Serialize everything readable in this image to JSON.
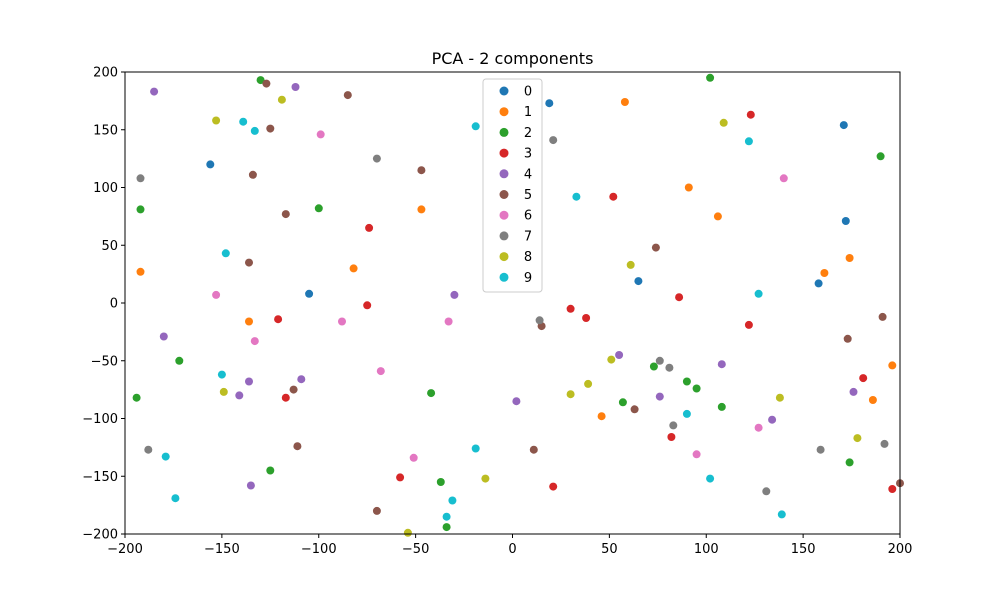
{
  "chart_data": {
    "type": "scatter",
    "title": "PCA - 2 components",
    "xlabel": "",
    "ylabel": "",
    "xlim": [
      -200,
      200
    ],
    "ylim": [
      -200,
      200
    ],
    "x_ticks": [
      -200,
      -150,
      -100,
      -50,
      0,
      50,
      100,
      150,
      200
    ],
    "y_ticks": [
      -200,
      -150,
      -100,
      -50,
      0,
      50,
      100,
      150,
      200
    ],
    "legend_position": "top-center",
    "grid": false,
    "series": [
      {
        "name": "0",
        "color": "#1f77b4",
        "points": [
          [
            19,
            173
          ],
          [
            171,
            154
          ],
          [
            172,
            71
          ],
          [
            -156,
            120
          ],
          [
            -105,
            8
          ],
          [
            65,
            19
          ],
          [
            158,
            17
          ]
        ]
      },
      {
        "name": "1",
        "color": "#ff7f0e",
        "points": [
          [
            58,
            174
          ],
          [
            91,
            100
          ],
          [
            -47,
            81
          ],
          [
            106,
            75
          ],
          [
            -82,
            30
          ],
          [
            -192,
            27
          ],
          [
            174,
            39
          ],
          [
            161,
            26
          ],
          [
            -136,
            -16
          ],
          [
            196,
            -54
          ],
          [
            186,
            -84
          ],
          [
            46,
            -98
          ]
        ]
      },
      {
        "name": "2",
        "color": "#2ca02c",
        "points": [
          [
            -130,
            193
          ],
          [
            102,
            195
          ],
          [
            190,
            127
          ],
          [
            -100,
            82
          ],
          [
            -192,
            81
          ],
          [
            -172,
            -50
          ],
          [
            -194,
            -82
          ],
          [
            -42,
            -78
          ],
          [
            73,
            -55
          ],
          [
            90,
            -68
          ],
          [
            95,
            -74
          ],
          [
            57,
            -86
          ],
          [
            108,
            -90
          ],
          [
            174,
            -138
          ],
          [
            -125,
            -145
          ],
          [
            -37,
            -155
          ],
          [
            -34,
            -194
          ]
        ]
      },
      {
        "name": "3",
        "color": "#d62728",
        "points": [
          [
            123,
            163
          ],
          [
            52,
            92
          ],
          [
            -74,
            65
          ],
          [
            86,
            5
          ],
          [
            -75,
            -2
          ],
          [
            -121,
            -14
          ],
          [
            30,
            -5
          ],
          [
            38,
            -13
          ],
          [
            122,
            -19
          ],
          [
            181,
            -65
          ],
          [
            -117,
            -82
          ],
          [
            82,
            -116
          ],
          [
            -58,
            -151
          ],
          [
            21,
            -159
          ],
          [
            196,
            -161
          ]
        ]
      },
      {
        "name": "4",
        "color": "#9467bd",
        "points": [
          [
            -185,
            183
          ],
          [
            -112,
            187
          ],
          [
            -30,
            7
          ],
          [
            -180,
            -29
          ],
          [
            55,
            -45
          ],
          [
            108,
            -53
          ],
          [
            -136,
            -68
          ],
          [
            -109,
            -66
          ],
          [
            -141,
            -80
          ],
          [
            76,
            -81
          ],
          [
            176,
            -77
          ],
          [
            2,
            -85
          ],
          [
            134,
            -101
          ],
          [
            -135,
            -158
          ]
        ]
      },
      {
        "name": "5",
        "color": "#8c564b",
        "points": [
          [
            -127,
            190
          ],
          [
            -85,
            180
          ],
          [
            -125,
            151
          ],
          [
            -47,
            115
          ],
          [
            -134,
            111
          ],
          [
            -117,
            77
          ],
          [
            74,
            48
          ],
          [
            -136,
            35
          ],
          [
            191,
            -12
          ],
          [
            15,
            -20
          ],
          [
            173,
            -31
          ],
          [
            -113,
            -75
          ],
          [
            63,
            -92
          ],
          [
            -111,
            -124
          ],
          [
            11,
            -127
          ],
          [
            -70,
            -180
          ],
          [
            200,
            -156
          ]
        ]
      },
      {
        "name": "6",
        "color": "#e377c2",
        "points": [
          [
            -99,
            146
          ],
          [
            140,
            108
          ],
          [
            -153,
            7
          ],
          [
            -88,
            -16
          ],
          [
            -33,
            -16
          ],
          [
            -133,
            -33
          ],
          [
            -68,
            -59
          ],
          [
            127,
            -108
          ],
          [
            95,
            -131
          ],
          [
            -51,
            -134
          ]
        ]
      },
      {
        "name": "7",
        "color": "#7f7f7f",
        "points": [
          [
            21,
            141
          ],
          [
            -70,
            125
          ],
          [
            -192,
            108
          ],
          [
            14,
            -15
          ],
          [
            76,
            -50
          ],
          [
            81,
            -56
          ],
          [
            83,
            -106
          ],
          [
            159,
            -127
          ],
          [
            192,
            -122
          ],
          [
            -188,
            -127
          ],
          [
            131,
            -163
          ]
        ]
      },
      {
        "name": "8",
        "color": "#bcbd22",
        "points": [
          [
            -153,
            158
          ],
          [
            -119,
            176
          ],
          [
            109,
            156
          ],
          [
            61,
            33
          ],
          [
            51,
            -49
          ],
          [
            39,
            -70
          ],
          [
            30,
            -79
          ],
          [
            -149,
            -77
          ],
          [
            138,
            -82
          ],
          [
            178,
            -117
          ],
          [
            -14,
            -152
          ],
          [
            -54,
            -199
          ]
        ]
      },
      {
        "name": "9",
        "color": "#17becf",
        "points": [
          [
            -139,
            157
          ],
          [
            -133,
            149
          ],
          [
            -19,
            153
          ],
          [
            122,
            140
          ],
          [
            33,
            92
          ],
          [
            -148,
            43
          ],
          [
            127,
            8
          ],
          [
            -150,
            -62
          ],
          [
            90,
            -96
          ],
          [
            -19,
            -126
          ],
          [
            -179,
            -133
          ],
          [
            -174,
            -169
          ],
          [
            102,
            -152
          ],
          [
            -31,
            -171
          ],
          [
            -34,
            -185
          ],
          [
            139,
            -183
          ]
        ]
      }
    ]
  }
}
